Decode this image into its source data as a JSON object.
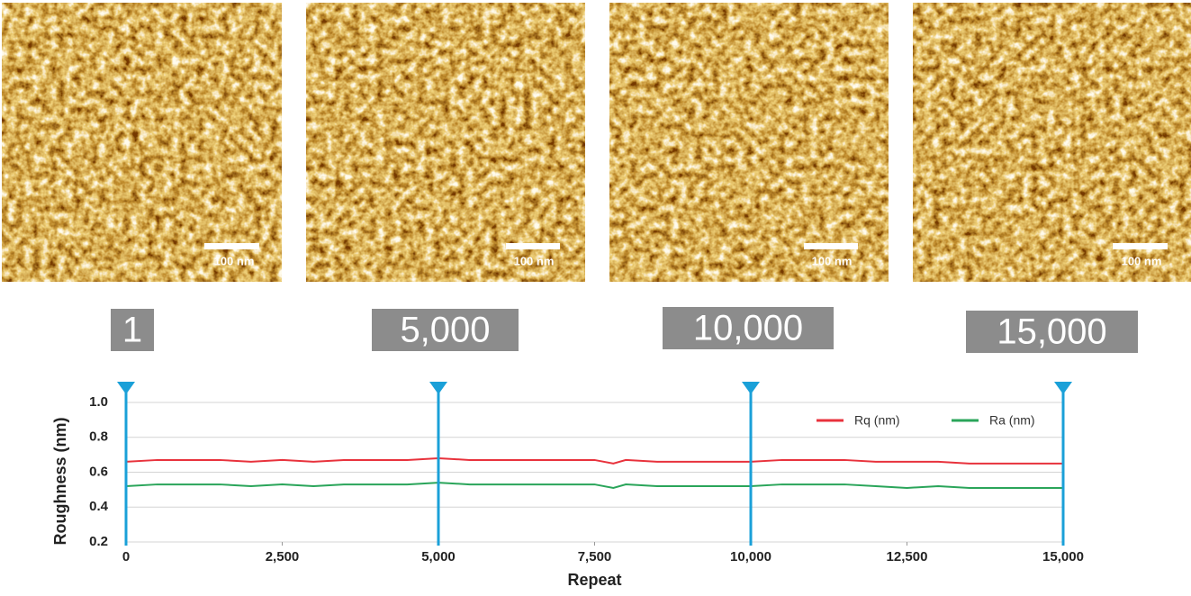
{
  "images": {
    "scale_bar_label": "100 nm",
    "labels": [
      "1",
      "5,000",
      "10,000",
      "15,000"
    ]
  },
  "chart_data": {
    "type": "line",
    "x_label": "Repeat",
    "y_label": "Roughness (nm)",
    "x": [
      0,
      500,
      1000,
      1500,
      2000,
      2500,
      3000,
      3500,
      4000,
      4500,
      5000,
      5500,
      6000,
      6500,
      7000,
      7500,
      7800,
      8000,
      8500,
      9000,
      9500,
      10000,
      10500,
      11000,
      11500,
      12000,
      12500,
      13000,
      13500,
      14000,
      14500,
      15000
    ],
    "series": [
      {
        "name": "Rq (nm)",
        "color": "#e8323c",
        "values": [
          0.66,
          0.67,
          0.67,
          0.67,
          0.66,
          0.67,
          0.66,
          0.67,
          0.67,
          0.67,
          0.68,
          0.67,
          0.67,
          0.67,
          0.67,
          0.67,
          0.65,
          0.67,
          0.66,
          0.66,
          0.66,
          0.66,
          0.67,
          0.67,
          0.67,
          0.66,
          0.66,
          0.66,
          0.65,
          0.65,
          0.65,
          0.65
        ]
      },
      {
        "name": "Ra (nm)",
        "color": "#2aa55a",
        "values": [
          0.52,
          0.53,
          0.53,
          0.53,
          0.52,
          0.53,
          0.52,
          0.53,
          0.53,
          0.53,
          0.54,
          0.53,
          0.53,
          0.53,
          0.53,
          0.53,
          0.51,
          0.53,
          0.52,
          0.52,
          0.52,
          0.52,
          0.53,
          0.53,
          0.53,
          0.52,
          0.51,
          0.52,
          0.51,
          0.51,
          0.51,
          0.51
        ]
      }
    ],
    "markers": [
      0,
      5000,
      10000,
      15000
    ],
    "marker_color": "#1aa0d8",
    "xlim": [
      0,
      15000
    ],
    "xticks": [
      0,
      {
        "value": 2500,
        "label": "2,500"
      },
      {
        "value": 5000,
        "label": "5,000"
      },
      {
        "value": 7500,
        "label": "7,500"
      },
      {
        "value": 10000,
        "label": "10,000"
      },
      {
        "value": 12500,
        "label": "12,500"
      },
      {
        "value": 15000,
        "label": "15,000"
      }
    ],
    "ylim": [
      0.2,
      1.0
    ],
    "yticks": [
      0.2,
      0.4,
      0.6,
      0.8,
      {
        "value": 1.0,
        "label": "1.0"
      }
    ],
    "grid": true,
    "legend": "top-right"
  }
}
